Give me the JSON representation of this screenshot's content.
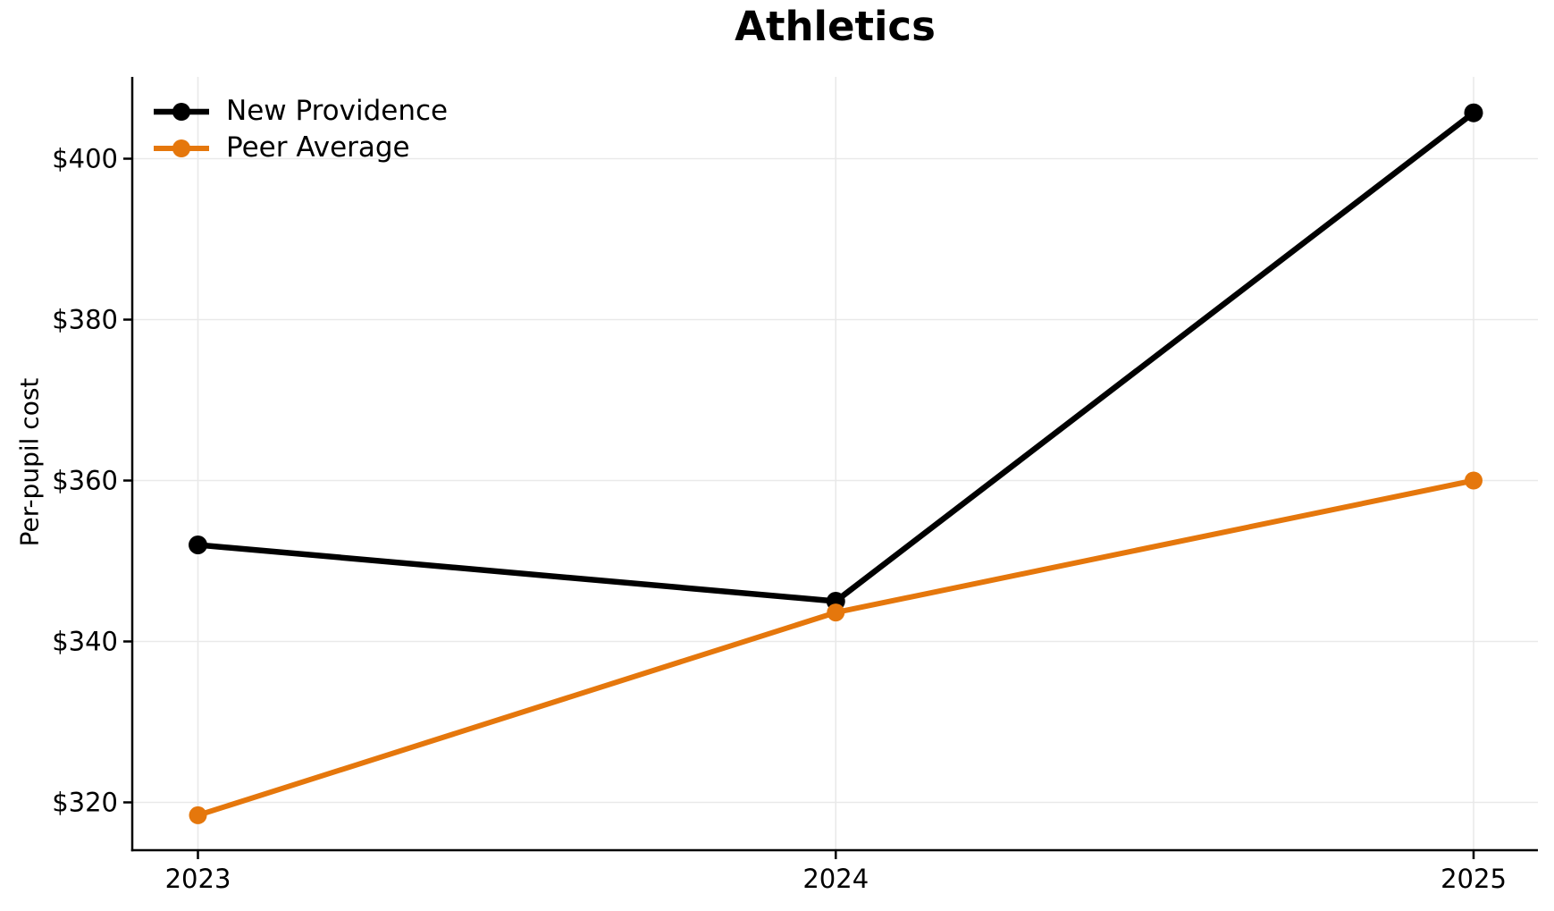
{
  "chart_data": {
    "type": "line",
    "title": "Athletics",
    "xlabel": "",
    "ylabel": "Per-pupil cost",
    "categories": [
      "2023",
      "2024",
      "2025"
    ],
    "y_ticks": [
      320,
      340,
      360,
      380,
      400
    ],
    "y_tick_labels": [
      "$320",
      "$340",
      "$360",
      "$380",
      "$400"
    ],
    "ylim": [
      314.1,
      410.2
    ],
    "grid": true,
    "legend_position": "upper-left",
    "colors": {
      "grid": "#E9E9E9",
      "axis": "#000000",
      "background": "#FFFFFF"
    },
    "series": [
      {
        "name": "New Providence",
        "color": "#000000",
        "values": [
          352.0,
          345.0,
          405.7
        ]
      },
      {
        "name": "Peer Average",
        "color": "#E5770C",
        "values": [
          318.4,
          343.6,
          360.0
        ]
      }
    ]
  }
}
